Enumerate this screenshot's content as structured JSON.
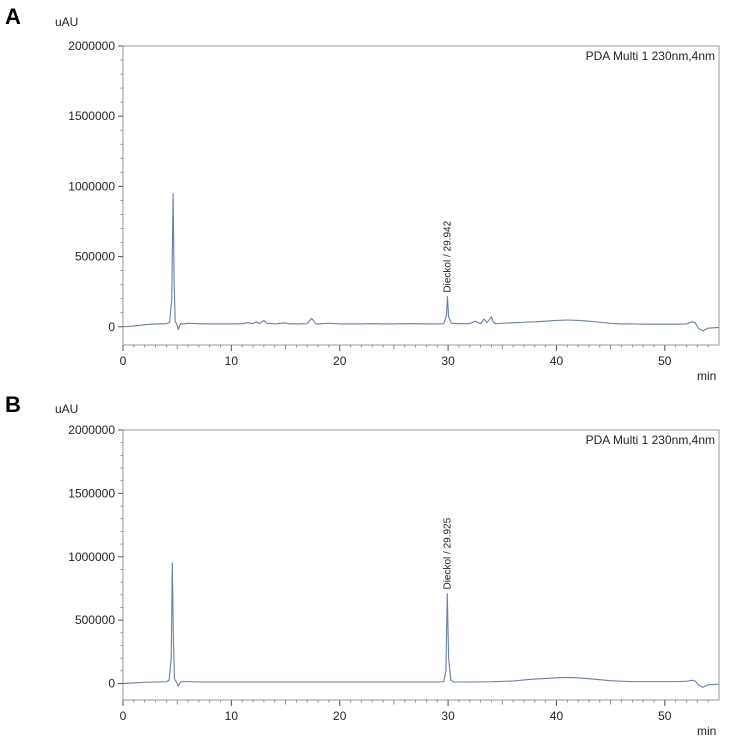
{
  "chart_data": [
    {
      "type": "line",
      "panel_label": "A",
      "ylabel": "uAU",
      "xlabel": "min",
      "legend": "PDA Multi 1 230nm,4nm",
      "xlim": [
        0,
        55
      ],
      "ylim": [
        -130000,
        2000000
      ],
      "x_ticks": [
        0,
        10,
        20,
        30,
        40,
        50
      ],
      "y_ticks": [
        0,
        500000,
        1000000,
        1500000,
        2000000
      ],
      "peak_annotations": [
        {
          "label": "Dieckol / 29.942",
          "x": 29.942,
          "y": 215000
        }
      ],
      "series": [
        {
          "color": "#6b7fa0",
          "x": [
            0,
            1,
            2,
            3,
            4,
            4.3,
            4.5,
            4.62,
            4.72,
            4.82,
            4.95,
            5.1,
            5.3,
            5.6,
            6,
            7,
            8,
            9,
            10,
            11,
            11.5,
            12,
            12.3,
            12.6,
            13,
            13.3,
            13.6,
            14,
            15,
            15.3,
            15.6,
            16,
            17,
            17.4,
            17.8,
            18,
            19,
            20,
            21,
            22,
            23,
            24,
            25,
            26,
            27,
            28,
            29,
            29.6,
            29.85,
            29.94,
            30.05,
            30.3,
            31,
            32,
            32.5,
            33,
            33.3,
            33.6,
            34,
            34.2,
            34.4,
            35,
            36,
            37,
            38,
            39,
            40,
            41,
            42,
            43,
            44,
            45,
            46,
            47,
            48,
            49,
            50,
            51,
            52,
            52.5,
            52.8,
            53.1,
            53.5,
            54,
            55
          ],
          "y": [
            0,
            5000,
            15000,
            20000,
            22000,
            30000,
            200000,
            950000,
            300000,
            35000,
            22000,
            -20000,
            22000,
            20000,
            25000,
            22000,
            20000,
            20000,
            20000,
            22000,
            30000,
            22000,
            35000,
            22000,
            45000,
            22000,
            25000,
            20000,
            28000,
            20000,
            22000,
            20000,
            22000,
            60000,
            22000,
            20000,
            25000,
            20000,
            20000,
            20000,
            22000,
            20000,
            20000,
            22000,
            22000,
            20000,
            20000,
            22000,
            80000,
            215000,
            70000,
            25000,
            22000,
            22000,
            40000,
            22000,
            55000,
            30000,
            70000,
            30000,
            22000,
            25000,
            28000,
            32000,
            35000,
            40000,
            45000,
            48000,
            45000,
            40000,
            32000,
            25000,
            20000,
            20000,
            18000,
            18000,
            18000,
            18000,
            20000,
            35000,
            30000,
            -10000,
            -30000,
            -10000,
            -5000
          ]
        }
      ]
    },
    {
      "type": "line",
      "panel_label": "B",
      "ylabel": "uAU",
      "xlabel": "min",
      "legend": "PDA Multi 1 230nm,4nm",
      "xlim": [
        0,
        55
      ],
      "ylim": [
        -130000,
        2000000
      ],
      "x_ticks": [
        0,
        10,
        20,
        30,
        40,
        50
      ],
      "y_ticks": [
        0,
        500000,
        1000000,
        1500000,
        2000000
      ],
      "peak_annotations": [
        {
          "label": "Dieckol / 29.925",
          "x": 29.925,
          "y": 710000
        }
      ],
      "series": [
        {
          "color": "#6b7fa0",
          "x": [
            0,
            1,
            2,
            3,
            4,
            4.25,
            4.45,
            4.55,
            4.65,
            4.75,
            4.9,
            5.1,
            5.3,
            5.6,
            6,
            7,
            8,
            9,
            10,
            12,
            14,
            16,
            18,
            20,
            22,
            24,
            26,
            28,
            29,
            29.6,
            29.8,
            29.925,
            30.05,
            30.25,
            30.6,
            31,
            32,
            34,
            36,
            37,
            38,
            39,
            40,
            41,
            42,
            43,
            44,
            45,
            46,
            47,
            48,
            49,
            50,
            51,
            52,
            52.5,
            52.8,
            53.1,
            53.5,
            54,
            55
          ],
          "y": [
            0,
            5000,
            10000,
            12000,
            14000,
            25000,
            200000,
            950000,
            350000,
            40000,
            15000,
            -20000,
            12000,
            15000,
            15000,
            12000,
            12000,
            12000,
            12000,
            12000,
            12000,
            12000,
            12000,
            12000,
            12000,
            12000,
            12000,
            12000,
            12000,
            15000,
            100000,
            710000,
            200000,
            25000,
            12000,
            12000,
            12000,
            14000,
            20000,
            28000,
            35000,
            40000,
            45000,
            48000,
            45000,
            38000,
            30000,
            22000,
            18000,
            15000,
            15000,
            15000,
            15000,
            15000,
            18000,
            25000,
            20000,
            -10000,
            -30000,
            -10000,
            -5000
          ]
        }
      ]
    }
  ]
}
